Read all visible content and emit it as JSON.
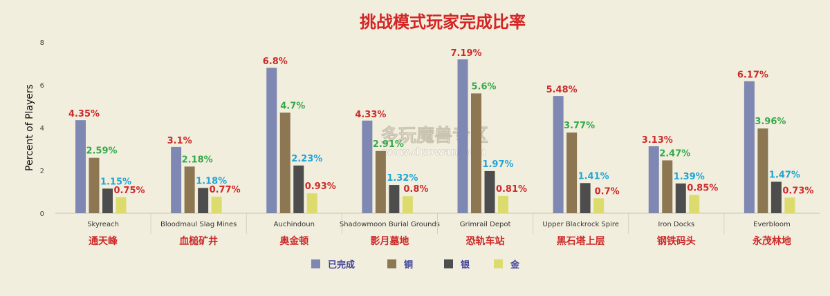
{
  "chart_data": {
    "type": "bar",
    "title": "挑战模式玩家完成比率",
    "ylabel": "Percent of Players",
    "xlabel": "",
    "ylim": [
      0,
      8
    ],
    "yticks": [
      0,
      2,
      4,
      6,
      8
    ],
    "grid": false,
    "legend_position": "bottom",
    "categories": [
      "Skyreach",
      "Bloodmaul Slag Mines",
      "Auchindoun",
      "Shadowmoon Burial Grounds",
      "Grimrail Depot",
      "Upper Blackrock Spire",
      "Iron Docks",
      "Everbloom"
    ],
    "category_labels_cn": [
      "通天峰",
      "血槌矿井",
      "奥金顿",
      "影月墓地",
      "恐轨车站",
      "黑石塔上层",
      "钢铁码头",
      "永茂林地"
    ],
    "series": [
      {
        "name": "已完成",
        "color": "#7f88b2",
        "label_color": "#cc2a2a",
        "values": [
          4.35,
          3.1,
          6.8,
          4.33,
          7.19,
          5.48,
          3.13,
          6.17
        ],
        "labels": [
          "4.35%",
          "3.1%",
          "6.8%",
          "4.33%",
          "7.19%",
          "5.48%",
          "3.13%",
          "6.17%"
        ]
      },
      {
        "name": "铜",
        "color": "#8c7752",
        "label_color": "#34a94a",
        "values": [
          2.59,
          2.18,
          4.7,
          2.91,
          5.6,
          3.77,
          2.47,
          3.96
        ],
        "labels": [
          "2.59%",
          "2.18%",
          "4.7%",
          "2.91%",
          "5.6%",
          "3.77%",
          "2.47%",
          "3.96%"
        ]
      },
      {
        "name": "银",
        "color": "#4d4d4d",
        "label_color": "#1fa5d8",
        "values": [
          1.15,
          1.18,
          2.23,
          1.32,
          1.97,
          1.41,
          1.39,
          1.47
        ],
        "labels": [
          "1.15%",
          "1.18%",
          "2.23%",
          "1.32%",
          "1.97%",
          "1.41%",
          "1.39%",
          "1.47%"
        ]
      },
      {
        "name": "金",
        "color": "#dcdc6e",
        "label_color": "#cc2a2a",
        "values": [
          0.75,
          0.77,
          0.93,
          0.8,
          0.81,
          0.7,
          0.85,
          0.73
        ],
        "labels": [
          "0.75%",
          "0.77%",
          "0.93%",
          "0.8%",
          "0.81%",
          "0.7%",
          "0.85%",
          "0.73%"
        ]
      }
    ],
    "watermark": {
      "line1": "多玩魔兽专区",
      "line2": "wow.duowan.com"
    }
  }
}
